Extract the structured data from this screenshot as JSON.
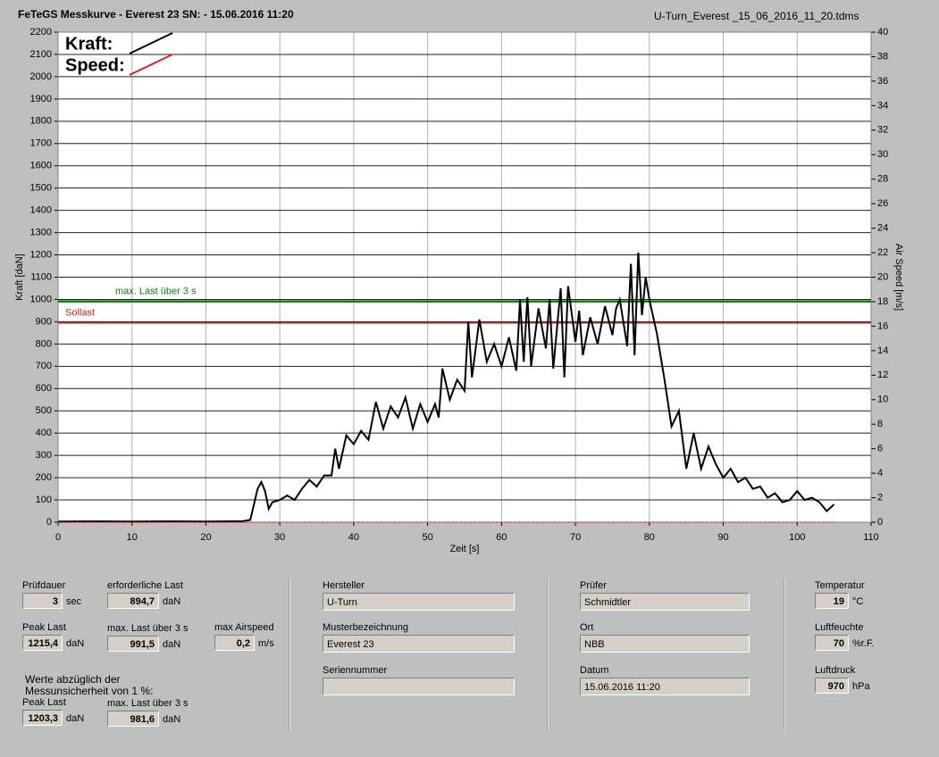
{
  "header": {
    "title": "FeTeGS Messkurve - Everest 23  SN:  - 15.06.2016 11:20",
    "filename": "U-Turn_Everest _15_06_2016_11_20.tdms"
  },
  "chart_data": {
    "type": "line",
    "xlabel": "Zeit [s]",
    "ylabel": "Kraft [daN]",
    "y2label": "Air Speed [m/s]",
    "xlim": [
      0,
      110
    ],
    "xticks": [
      0,
      10,
      20,
      30,
      40,
      50,
      60,
      70,
      80,
      90,
      100,
      110
    ],
    "ylim": [
      0,
      2200
    ],
    "yticks": [
      0,
      100,
      200,
      300,
      400,
      500,
      600,
      700,
      800,
      900,
      1000,
      1100,
      1200,
      1300,
      1400,
      1500,
      1600,
      1700,
      1800,
      1900,
      2000,
      2100,
      2200
    ],
    "y2lim": [
      0,
      40
    ],
    "y2ticks": [
      0,
      2,
      4,
      6,
      8,
      10,
      12,
      14,
      16,
      18,
      20,
      22,
      24,
      26,
      28,
      30,
      32,
      34,
      36,
      38,
      40
    ],
    "grid": true,
    "series": [
      {
        "name": "Kraft:",
        "color": "#000000",
        "x": [
          0,
          5,
          10,
          15,
          20,
          25,
          26,
          27,
          27.5,
          28,
          28.5,
          29,
          30,
          31,
          32,
          33,
          34,
          35,
          36,
          37,
          37.5,
          38,
          39,
          40,
          41,
          42,
          43,
          44,
          45,
          46,
          47,
          48,
          49,
          50,
          51,
          51.5,
          52,
          53,
          54,
          55,
          55.5,
          56,
          57,
          58,
          59,
          60,
          61,
          62,
          62.5,
          63,
          63.5,
          64,
          65,
          66,
          66.5,
          67,
          68,
          68.5,
          69,
          70,
          70.5,
          71,
          72,
          73,
          74,
          75,
          75.5,
          76,
          77,
          77.5,
          78,
          78.5,
          79,
          79.5,
          80,
          81,
          82,
          83,
          84,
          85,
          86,
          87,
          88,
          89,
          90,
          91,
          92,
          93,
          94,
          95,
          96,
          97,
          98,
          99,
          100,
          101,
          102,
          103,
          104,
          105
        ],
        "values": [
          3,
          4,
          3,
          4,
          3,
          5,
          10,
          150,
          180,
          140,
          60,
          90,
          100,
          120,
          100,
          150,
          190,
          160,
          210,
          210,
          330,
          240,
          390,
          350,
          410,
          370,
          540,
          420,
          520,
          470,
          560,
          420,
          530,
          450,
          530,
          470,
          690,
          550,
          640,
          590,
          900,
          650,
          910,
          720,
          800,
          700,
          830,
          680,
          1000,
          720,
          1010,
          700,
          960,
          780,
          1000,
          690,
          1050,
          650,
          1060,
          810,
          950,
          750,
          920,
          800,
          970,
          840,
          960,
          1000,
          790,
          1160,
          750,
          1210,
          930,
          1100,
          1000,
          850,
          650,
          430,
          500,
          240,
          400,
          240,
          340,
          260,
          200,
          240,
          180,
          200,
          150,
          160,
          110,
          130,
          90,
          100,
          140,
          100,
          110,
          90,
          50,
          80
        ]
      },
      {
        "name": "Speed:",
        "color": "#d42020",
        "axis": "y2",
        "x": [
          0,
          26,
          50,
          80,
          105
        ],
        "values": [
          0,
          0,
          0,
          0,
          0
        ]
      }
    ],
    "reference_lines": [
      {
        "label": "max. Last über  3 s",
        "value": 991.5,
        "color": "#0a7a0a"
      },
      {
        "label": "Sollast",
        "value": 894.7,
        "color": "#c02020"
      }
    ]
  },
  "fields": [
    {
      "label": "Prüfdauer",
      "value": "3",
      "unit": "sec"
    },
    {
      "label": "erforderliche Last",
      "value": "894,7",
      "unit": "daN"
    },
    {
      "label": "Peak Last",
      "value": "1215,4",
      "unit": "daN"
    },
    {
      "label": "max. Last über  3 s",
      "value": "991,5",
      "unit": "daN"
    },
    {
      "label": "max Airspeed",
      "value": "0,2",
      "unit": "m/s"
    },
    {
      "label": "Peak Last",
      "value": "1203,3",
      "unit": "daN"
    },
    {
      "label": "max. Last über  3 s",
      "value": "981,6",
      "unit": "daN"
    },
    {
      "label": "Hersteller",
      "value": "U-Turn"
    },
    {
      "label": "Musterbezeichnung",
      "value": "Everest 23"
    },
    {
      "label": "Seriennummer"
    },
    {
      "label": "Prüfer",
      "value": "Schmidtler"
    },
    {
      "label": "Ort",
      "value": "NBB"
    },
    {
      "label": "Datum",
      "value": "15.06.2016 11:20"
    },
    {
      "label": "Temperatur",
      "value": "19",
      "unit": "°C"
    },
    {
      "label": "Luftfeuchte",
      "value": "70",
      "unit": "%r.F."
    },
    {
      "label": "Luftdruck",
      "value": "970",
      "unit": "hPa"
    }
  ],
  "note": [
    "Werte abzüglich der",
    "Messunsicherheit von 1  %:"
  ]
}
